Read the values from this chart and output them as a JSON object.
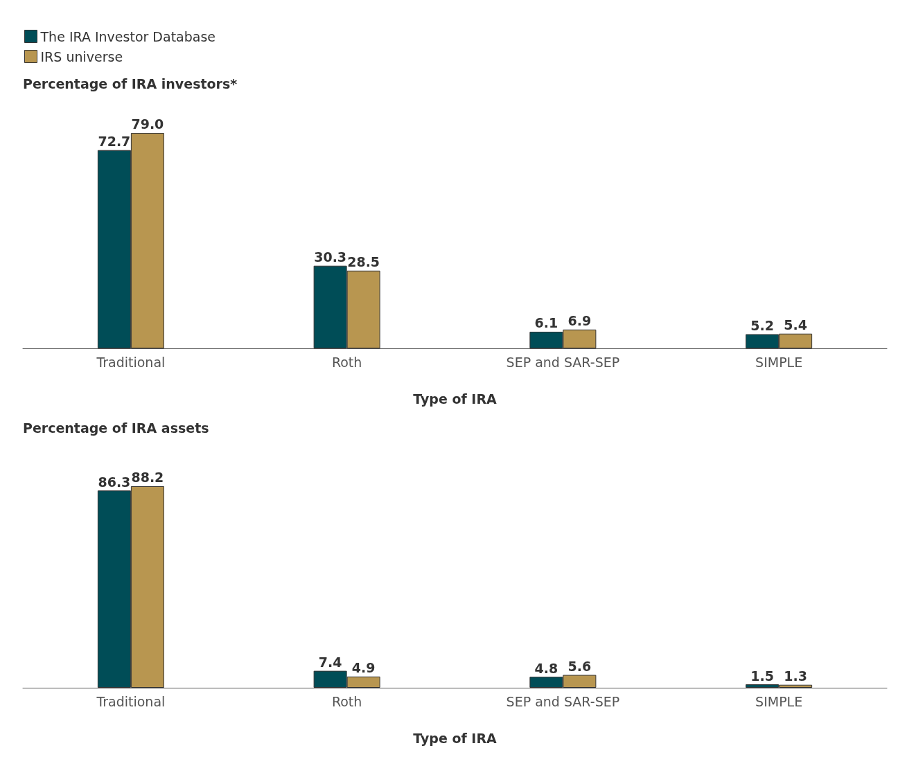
{
  "chart_data": [
    {
      "type": "bar",
      "title": "Percentage of IRA investors*",
      "xlabel": "Type of IRA",
      "categories": [
        "Traditional",
        "Roth",
        "SEP and SAR-SEP",
        "SIMPLE"
      ],
      "series": [
        {
          "name": "The IRA Investor Database",
          "color": "#004d57",
          "values": [
            72.7,
            30.3,
            6.1,
            5.2
          ],
          "value_labels": [
            "72.7",
            "30.3",
            "6.1",
            "5.2"
          ]
        },
        {
          "name": "IRS universe",
          "color": "#b89650",
          "values": [
            79.0,
            28.5,
            6.9,
            5.4
          ],
          "value_labels": [
            "79.0",
            "28.5",
            "6.9",
            "5.4"
          ]
        }
      ],
      "legend": "top left",
      "grid": false
    },
    {
      "type": "bar",
      "title": "Percentage of IRA assets",
      "xlabel": "Type of IRA",
      "categories": [
        "Traditional",
        "Roth",
        "SEP and SAR-SEP",
        "SIMPLE"
      ],
      "series": [
        {
          "color": "#004d57",
          "values": [
            86.3,
            7.4,
            4.8,
            1.5
          ],
          "value_labels": [
            "86.3",
            "7.4",
            "4.8",
            "1.5"
          ]
        },
        {
          "color": "#b89650",
          "values": [
            88.2,
            4.9,
            5.6,
            1.3
          ],
          "value_labels": [
            "88.2",
            "4.9",
            "5.6",
            "1.3"
          ]
        }
      ],
      "grid": false
    }
  ]
}
